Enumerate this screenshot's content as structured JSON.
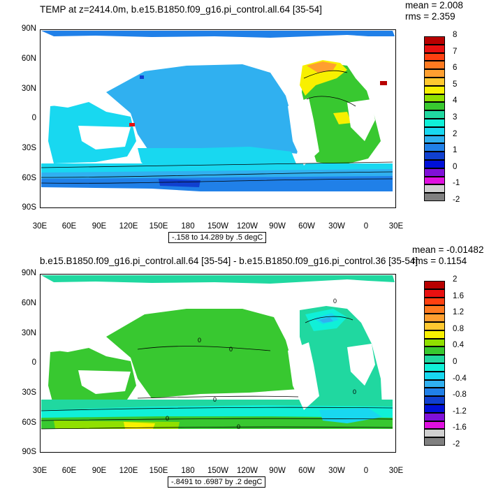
{
  "panels": [
    {
      "title": "TEMP at z=2414.0m, b.e15.B1850.f09_g16.pi_control.all.64 [35-54]",
      "stats": [
        "mean = 2.008",
        "rms = 2.359"
      ],
      "range_label": "-.158 to 14.289 by .5 degC",
      "colorbar_labels": [
        "8",
        "7",
        "6",
        "5",
        "4",
        "3",
        "2",
        "1",
        "0",
        "-1",
        "-2"
      ],
      "colorbar_colors": [
        "#b80000",
        "#e81010",
        "#ff4010",
        "#ff7a20",
        "#ff9f30",
        "#ffc830",
        "#f8f000",
        "#90e000",
        "#38c830",
        "#20d8a0",
        "#10f0d8",
        "#18d8f0",
        "#30b0f0",
        "#2080e8",
        "#1040d0",
        "#0010d8",
        "#8010d8",
        "#e010e0",
        "#d0d0d0",
        "#808080"
      ]
    },
    {
      "title": "b.e15.B1850.f09_g16.pi_control.all.64 [35-54] - b.e15.B1850.f09_g16.pi_control.36 [35-54]",
      "stats": [
        "mean = -0.01482",
        "rms = 0.1154"
      ],
      "range_label": "-.8491 to .6987 by .2 degC",
      "colorbar_labels": [
        "2",
        "1.6",
        "1.2",
        "0.8",
        "0.4",
        "0",
        "-0.4",
        "-0.8",
        "-1.2",
        "-1.6",
        "-2"
      ],
      "colorbar_colors": [
        "#b80000",
        "#e81010",
        "#ff4010",
        "#ff7a20",
        "#ff9f30",
        "#ffc830",
        "#f8f000",
        "#90e000",
        "#38c830",
        "#20d8a0",
        "#10f0d8",
        "#18d8f0",
        "#30b0f0",
        "#2080e8",
        "#1040d0",
        "#0010d8",
        "#8010d8",
        "#e010e0",
        "#d0d0d0",
        "#808080"
      ]
    }
  ],
  "lat_labels": [
    "90N",
    "60N",
    "30N",
    "0",
    "30S",
    "60S",
    "90S"
  ],
  "lon_labels": [
    "30E",
    "60E",
    "90E",
    "120E",
    "150E",
    "180",
    "150W",
    "120W",
    "90W",
    "60W",
    "30W",
    "0",
    "30E"
  ],
  "contour_labels": [
    "0",
    "0",
    "0",
    "0",
    "0",
    "0",
    "0"
  ]
}
